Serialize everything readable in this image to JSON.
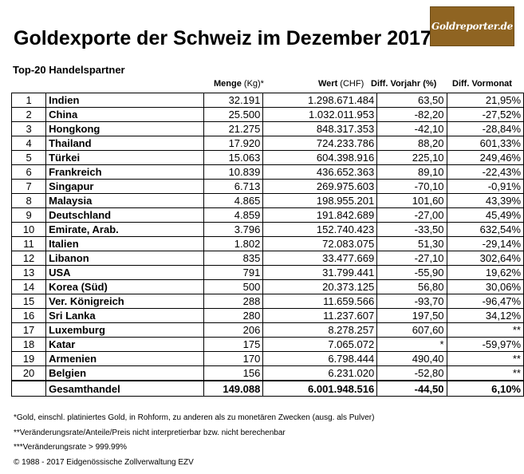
{
  "title": "Goldexporte der Schweiz im Dezember 2017",
  "logo_text": "Goldreporter.de",
  "subtitle": "Top-20 Handelspartner",
  "headers": {
    "menge": "Menge",
    "menge_unit": " (Kg)*",
    "wert": "Wert",
    "wert_unit": " (CHF)",
    "diff_vorjahr": "Diff. Vorjahr (%)",
    "diff_vormonat": "Diff. Vormonat"
  },
  "rows": [
    {
      "rank": "1",
      "country": "Indien",
      "menge": "32.191",
      "wert": "1.298.671.484",
      "vorjahr": "63,50",
      "vormonat": "21,95%"
    },
    {
      "rank": "2",
      "country": "China",
      "menge": "25.500",
      "wert": "1.032.011.953",
      "vorjahr": "-82,20",
      "vormonat": "-27,52%"
    },
    {
      "rank": "3",
      "country": "Hongkong",
      "menge": "21.275",
      "wert": "848.317.353",
      "vorjahr": "-42,10",
      "vormonat": "-28,84%"
    },
    {
      "rank": "4",
      "country": "Thailand",
      "menge": "17.920",
      "wert": "724.233.786",
      "vorjahr": "88,20",
      "vormonat": "601,33%"
    },
    {
      "rank": "5",
      "country": "Türkei",
      "menge": "15.063",
      "wert": "604.398.916",
      "vorjahr": "225,10",
      "vormonat": "249,46%"
    },
    {
      "rank": "6",
      "country": "Frankreich",
      "menge": "10.839",
      "wert": "436.652.363",
      "vorjahr": "89,10",
      "vormonat": "-22,43%"
    },
    {
      "rank": "7",
      "country": "Singapur",
      "menge": "6.713",
      "wert": "269.975.603",
      "vorjahr": "-70,10",
      "vormonat": "-0,91%"
    },
    {
      "rank": "8",
      "country": "Malaysia",
      "menge": "4.865",
      "wert": "198.955.201",
      "vorjahr": "101,60",
      "vormonat": "43,39%"
    },
    {
      "rank": "9",
      "country": "Deutschland",
      "menge": "4.859",
      "wert": "191.842.689",
      "vorjahr": "-27,00",
      "vormonat": "45,49%"
    },
    {
      "rank": "10",
      "country": "Emirate, Arab.",
      "menge": "3.796",
      "wert": "152.740.423",
      "vorjahr": "-33,50",
      "vormonat": "632,54%"
    },
    {
      "rank": "11",
      "country": "Italien",
      "menge": "1.802",
      "wert": "72.083.075",
      "vorjahr": "51,30",
      "vormonat": "-29,14%"
    },
    {
      "rank": "12",
      "country": "Libanon",
      "menge": "835",
      "wert": "33.477.669",
      "vorjahr": "-27,10",
      "vormonat": "302,64%"
    },
    {
      "rank": "13",
      "country": "USA",
      "menge": "791",
      "wert": "31.799.441",
      "vorjahr": "-55,90",
      "vormonat": "19,62%"
    },
    {
      "rank": "14",
      "country": "Korea (Süd)",
      "menge": "500",
      "wert": "20.373.125",
      "vorjahr": "56,80",
      "vormonat": "30,06%"
    },
    {
      "rank": "15",
      "country": "Ver. Königreich",
      "menge": "288",
      "wert": "11.659.566",
      "vorjahr": "-93,70",
      "vormonat": "-96,47%"
    },
    {
      "rank": "16",
      "country": "Sri Lanka",
      "menge": "280",
      "wert": "11.237.607",
      "vorjahr": "197,50",
      "vormonat": "34,12%"
    },
    {
      "rank": "17",
      "country": "Luxemburg",
      "menge": "206",
      "wert": "8.278.257",
      "vorjahr": "607,60",
      "vormonat": "**"
    },
    {
      "rank": "18",
      "country": "Katar",
      "menge": "175",
      "wert": "7.065.072",
      "vorjahr": "*",
      "vormonat": "-59,97%"
    },
    {
      "rank": "19",
      "country": "Armenien",
      "menge": "170",
      "wert": "6.798.444",
      "vorjahr": "490,40",
      "vormonat": "**"
    },
    {
      "rank": "20",
      "country": "Belgien",
      "menge": "156",
      "wert": "6.231.020",
      "vorjahr": "-52,80",
      "vormonat": "**"
    }
  ],
  "total": {
    "label": "Gesamthandel",
    "menge": "149.088",
    "wert": "6.001.948.516",
    "vorjahr": "-44,50",
    "vormonat": "6,10%"
  },
  "notes": [
    "*Gold, einschl. platiniertes Gold, in Rohform, zu anderen als zu monetären Zwecken (ausg. als Pulver)",
    "**Veränderungsrate/Anteile/Preis nicht interpretierbar bzw. nicht berechenbar",
    "***Veränderungsrate > 999.99%",
    "© 1988 - 2017 Eidgenössische Zollverwaltung EZV"
  ]
}
